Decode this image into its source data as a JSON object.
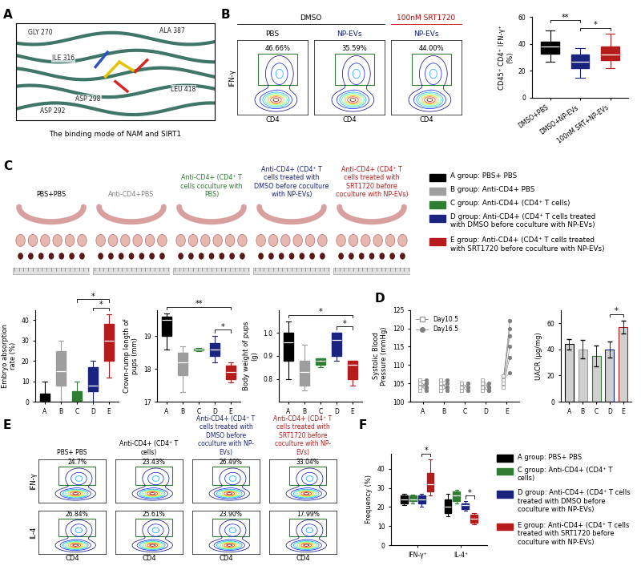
{
  "panel_labels": [
    "A",
    "B",
    "C",
    "D",
    "E",
    "F"
  ],
  "panel_A": {
    "residues": [
      "GLY 270",
      "ILE 316",
      "ASP 298",
      "ALA 387",
      "ASP 292",
      "LEU 418"
    ],
    "caption": "The binding mode of NAM and SIRT1"
  },
  "panel_B_flow": {
    "headers": [
      {
        "text": "DMSO",
        "color": "#000000"
      },
      {
        "text": "100nM SRT1720",
        "color": "#c00000"
      }
    ],
    "plots": [
      {
        "condition": "PBS",
        "color": "#000000",
        "gate_label": "46.66%"
      },
      {
        "condition": "NP-EVs",
        "color": "#1a237e",
        "gate_label": "35.59%"
      },
      {
        "condition": "NP-EVs",
        "color": "#1a237e",
        "gate_label": "44.00%"
      }
    ],
    "xlabel": "CD4",
    "ylabel": "IFN-γ"
  },
  "panel_C_photos": {
    "titles": [
      {
        "text": "PBS+PBS",
        "color": "#000000"
      },
      {
        "text": "Anti-CD4+PBS",
        "color": "#7f7f7f"
      },
      {
        "text": "Anti-CD4+ (CD4⁺ T cells coculture with PBS)",
        "color": "#2e7d32"
      },
      {
        "text": "Anti-CD4+ (CD4⁺ T cells treated with DMSO before coculture with NP-EVs)",
        "color": "#1a237e"
      },
      {
        "text": "Anti-CD4+ (CD4⁺ T cells treated with SRT1720 before coculture with NP-EVs)",
        "color": "#b71c1c"
      }
    ]
  },
  "groups": [
    {
      "name": "A group: PBS+ PBS",
      "color": "#000000"
    },
    {
      "name": "B group: Anti-CD4+ PBS",
      "color": "#9e9e9e"
    },
    {
      "name": "C group: Anti-CD4+ (CD4⁺ T cells)",
      "color": "#2e7d32"
    },
    {
      "name": "D group: Anti-CD4+ (CD4⁺ T cells treated with DMSO before coculture with NP-EVs)",
      "color": "#1a237e"
    },
    {
      "name": "E group: Anti-CD4+ (CD4⁺ T cells treated with SRT1720 before coculture with NP-EVs)",
      "color": "#b71c1c"
    }
  ],
  "panel_E_flow": {
    "columns": [
      {
        "text": "PBS+ PBS",
        "color": "#000000"
      },
      {
        "text": "Anti-CD4+ (CD4⁺ T cells)",
        "color": "#000000"
      },
      {
        "text": "Anti-CD4+ (CD4⁺ T cells treated with DMSO before coculture with NP-EVs)",
        "color": "#1a237e"
      },
      {
        "text": "Anti-CD4+ (CD4⁺ T cells treated with SRT1720 before coculture with NP-EVs)",
        "color": "#b71c1c"
      }
    ],
    "rows": [
      "IFN-γ",
      "IL-4"
    ],
    "gate_labels": [
      [
        "24.7%",
        "23.43%",
        "26.49%",
        "33.04%"
      ],
      [
        "26.84%",
        "25.61%",
        "23.90%",
        "17.99%"
      ]
    ],
    "xlabel": "CD4"
  },
  "chart_data": [
    {
      "type": "box",
      "ylabel": "CD45⁺ CD4⁺ IFN-γ⁺ (%)",
      "categories": [
        "DMSO+PBS",
        "DMSO+NP-EVs",
        "100nM SRT+NP-EVs"
      ],
      "colors": [
        "#000000",
        "#1a237e",
        "#b71c1c"
      ],
      "boxes": [
        {
          "whislo": 27,
          "q1": 33,
          "med": 38,
          "q3": 42,
          "whishi": 50
        },
        {
          "whislo": 15,
          "q1": 22,
          "med": 27,
          "q3": 32,
          "whishi": 37
        },
        {
          "whislo": 22,
          "q1": 28,
          "med": 32,
          "q3": 38,
          "whishi": 48
        }
      ],
      "ylim": [
        0,
        60
      ],
      "yticks": [
        0,
        20,
        40,
        60
      ],
      "significance": [
        {
          "from": "DMSO+NP-EVs",
          "to": "100nM SRT+NP-EVs",
          "label": "*"
        },
        {
          "from": "DMSO+PBS",
          "to": "DMSO+NP-EVs",
          "label": "**"
        }
      ]
    },
    {
      "type": "box",
      "ylabel": "Embryo absorption rate (%)",
      "categories": [
        "A",
        "B",
        "C",
        "D",
        "E"
      ],
      "colors": [
        "#000000",
        "#9e9e9e",
        "#2e7d32",
        "#1a237e",
        "#b71c1c"
      ],
      "boxes": [
        {
          "whislo": 0,
          "q1": 0,
          "med": 0,
          "q3": 4,
          "whishi": 10
        },
        {
          "whislo": 0,
          "q1": 8,
          "med": 15,
          "q3": 25,
          "whishi": 30
        },
        {
          "whislo": 0,
          "q1": 0,
          "med": 0,
          "q3": 5,
          "whishi": 10
        },
        {
          "whislo": 0,
          "q1": 5,
          "med": 8,
          "q3": 17,
          "whishi": 20
        },
        {
          "whislo": 12,
          "q1": 20,
          "med": 30,
          "q3": 38,
          "whishi": 43
        }
      ],
      "ylim": [
        0,
        45
      ],
      "yticks": [
        0,
        10,
        20,
        30,
        40
      ],
      "significance": [
        {
          "from": "D",
          "to": "E",
          "label": "*"
        },
        {
          "from": "C",
          "to": "E",
          "label": "*"
        }
      ]
    },
    {
      "type": "box",
      "ylabel": "Crown-rump length of pups (mm)",
      "categories": [
        "A",
        "B",
        "C",
        "D",
        "E"
      ],
      "colors": [
        "#000000",
        "#9e9e9e",
        "#2e7d32",
        "#1a237e",
        "#b71c1c"
      ],
      "boxes": [
        {
          "whislo": 18.6,
          "q1": 19.0,
          "med": 19.5,
          "q3": 19.6,
          "whishi": 19.7
        },
        {
          "whislo": 17.3,
          "q1": 17.8,
          "med": 18.2,
          "q3": 18.5,
          "whishi": 18.7
        },
        {
          "whislo": 18.55,
          "q1": 18.58,
          "med": 18.6,
          "q3": 18.62,
          "whishi": 18.65
        },
        {
          "whislo": 18.2,
          "q1": 18.4,
          "med": 18.6,
          "q3": 18.8,
          "whishi": 19.0
        },
        {
          "whislo": 17.6,
          "q1": 17.7,
          "med": 17.9,
          "q3": 18.1,
          "whishi": 18.2
        }
      ],
      "ylim": [
        17,
        19.8
      ],
      "yticks": [
        17,
        18,
        19
      ],
      "significance": [
        {
          "from": "D",
          "to": "E",
          "label": "*"
        },
        {
          "from": "A",
          "to": "E",
          "label": "**"
        }
      ]
    },
    {
      "type": "box",
      "ylabel": "Body weight of pups (g)",
      "categories": [
        "A",
        "B",
        "C",
        "D",
        "E"
      ],
      "colors": [
        "#000000",
        "#9e9e9e",
        "#2e7d32",
        "#1a237e",
        "#b71c1c"
      ],
      "boxes": [
        {
          "whislo": 0.8,
          "q1": 0.88,
          "med": 0.96,
          "q3": 1.0,
          "whishi": 1.05
        },
        {
          "whislo": 0.75,
          "q1": 0.77,
          "med": 0.83,
          "q3": 0.88,
          "whishi": 0.95
        },
        {
          "whislo": 0.85,
          "q1": 0.86,
          "med": 0.88,
          "q3": 0.89,
          "whishi": 0.89
        },
        {
          "whislo": 0.88,
          "q1": 0.9,
          "med": 0.97,
          "q3": 1.0,
          "whishi": 1.0
        },
        {
          "whislo": 0.77,
          "q1": 0.8,
          "med": 0.86,
          "q3": 0.88,
          "whishi": 0.88
        }
      ],
      "ylim": [
        0.7,
        1.1
      ],
      "yticks": [
        {
          "value": 0.8,
          "label": "0.8"
        },
        {
          "value": 0.9,
          "label": "0.9"
        },
        {
          "value": 1.0,
          "label": "1.0"
        }
      ],
      "significance": [
        {
          "from": "D",
          "to": "E",
          "label": "*"
        },
        {
          "from": "A",
          "to": "E",
          "label": "*"
        }
      ]
    },
    {
      "type": "line",
      "ylabel": "Systolic Blood Pressure (mmHg)",
      "categories": [
        "A",
        "B",
        "C",
        "D",
        "E"
      ],
      "ylim": [
        100,
        125
      ],
      "yticks": [
        100,
        105,
        110,
        115,
        120,
        125
      ],
      "legend": "upper left",
      "series": [
        {
          "name": "Day10.5",
          "color": "#9e9e9e",
          "marker": "square",
          "values": [
            [
              104,
              105,
              106,
              105,
              103,
              106
            ],
            [
              105,
              104,
              106,
              105,
              103
            ],
            [
              104,
              103,
              105
            ],
            [
              104,
              105,
              103,
              106,
              104
            ],
            [
              106,
              105,
              104,
              107,
              105,
              106
            ]
          ]
        },
        {
          "name": "Day16.5",
          "color": "#7f7f7f",
          "marker": "circle",
          "values": [
            [
              105,
              104,
              106,
              103,
              105,
              104
            ],
            [
              104,
              105,
              103,
              106,
              104
            ],
            [
              103,
              105,
              104
            ],
            [
              103,
              104,
              105,
              104,
              103
            ],
            [
              108,
              112,
              115,
              118,
              120,
              122
            ]
          ]
        }
      ]
    },
    {
      "type": "bar",
      "ylabel": "UACR (μg/mg)",
      "categories": [
        "A",
        "B",
        "C",
        "D",
        "E"
      ],
      "values": [
        44,
        40,
        35,
        40,
        57
      ],
      "errors": [
        4,
        7,
        8,
        6,
        5
      ],
      "colors": [
        "#000000",
        "#9e9e9e",
        "#2e7d32",
        "#1a237e",
        "#b71c1c"
      ],
      "ylim": [
        0,
        70
      ],
      "yticks": [
        0,
        20,
        40,
        60
      ],
      "significance": [
        {
          "from": "D",
          "to": "E",
          "label": "*"
        }
      ]
    },
    {
      "type": "box",
      "ylabel": "Frequency (%)",
      "categories": [
        "IFN-γ⁺",
        "IL-4⁺"
      ],
      "ylim": [
        0,
        48
      ],
      "yticks": [
        0,
        10,
        20,
        30,
        40
      ],
      "series": [
        {
          "name": "A group: PBS+ PBS",
          "color": "#000000",
          "boxes": [
            {
              "whislo": 21,
              "q1": 22,
              "med": 24,
              "q3": 26,
              "whishi": 27
            },
            {
              "whislo": 15,
              "q1": 17,
              "med": 20,
              "q3": 24,
              "whishi": 27
            }
          ]
        },
        {
          "name": "C group: Anti-CD4+ (CD4⁺ T cells)",
          "color": "#2e7d32",
          "boxes": [
            {
              "whislo": 22,
              "q1": 23,
              "med": 24,
              "q3": 26,
              "whishi": 26.5
            },
            {
              "whislo": 22,
              "q1": 23,
              "med": 26,
              "q3": 28,
              "whishi": 29
            }
          ]
        },
        {
          "name": "D group: Anti-CD4+ (CD4⁺ T cells treated with DMSO before coculture with NP-EVs)",
          "color": "#1a237e",
          "boxes": [
            {
              "whislo": 20,
              "q1": 22,
              "med": 24,
              "q3": 26,
              "whishi": 27
            },
            {
              "whislo": 18,
              "q1": 19,
              "med": 21,
              "q3": 22,
              "whishi": 23
            }
          ]
        },
        {
          "name": "E group: Anti-CD4+ (CD4⁺ T cells treated with SRT1720 before coculture with NP-EVs)",
          "color": "#b71c1c",
          "boxes": [
            {
              "whislo": 26,
              "q1": 28,
              "med": 32,
              "q3": 38,
              "whishi": 45
            },
            {
              "whislo": 11,
              "q1": 12,
              "med": 14,
              "q3": 16,
              "whishi": 17
            }
          ]
        }
      ],
      "significance": [
        {
          "category": "IFN-γ⁺",
          "from": "D group: Anti-CD4+ (CD4⁺ T cells treated with DMSO before coculture with NP-EVs)",
          "to": "E group: Anti-CD4+ (CD4⁺ T cells treated with SRT1720 before coculture with NP-EVs)",
          "label": "*"
        },
        {
          "category": "IL-4⁺",
          "from": "D group: Anti-CD4+ (CD4⁺ T cells treated with DMSO before coculture with NP-EVs)",
          "to": "E group: Anti-CD4+ (CD4⁺ T cells treated with SRT1720 before coculture with NP-EVs)",
          "label": "*"
        }
      ]
    }
  ]
}
